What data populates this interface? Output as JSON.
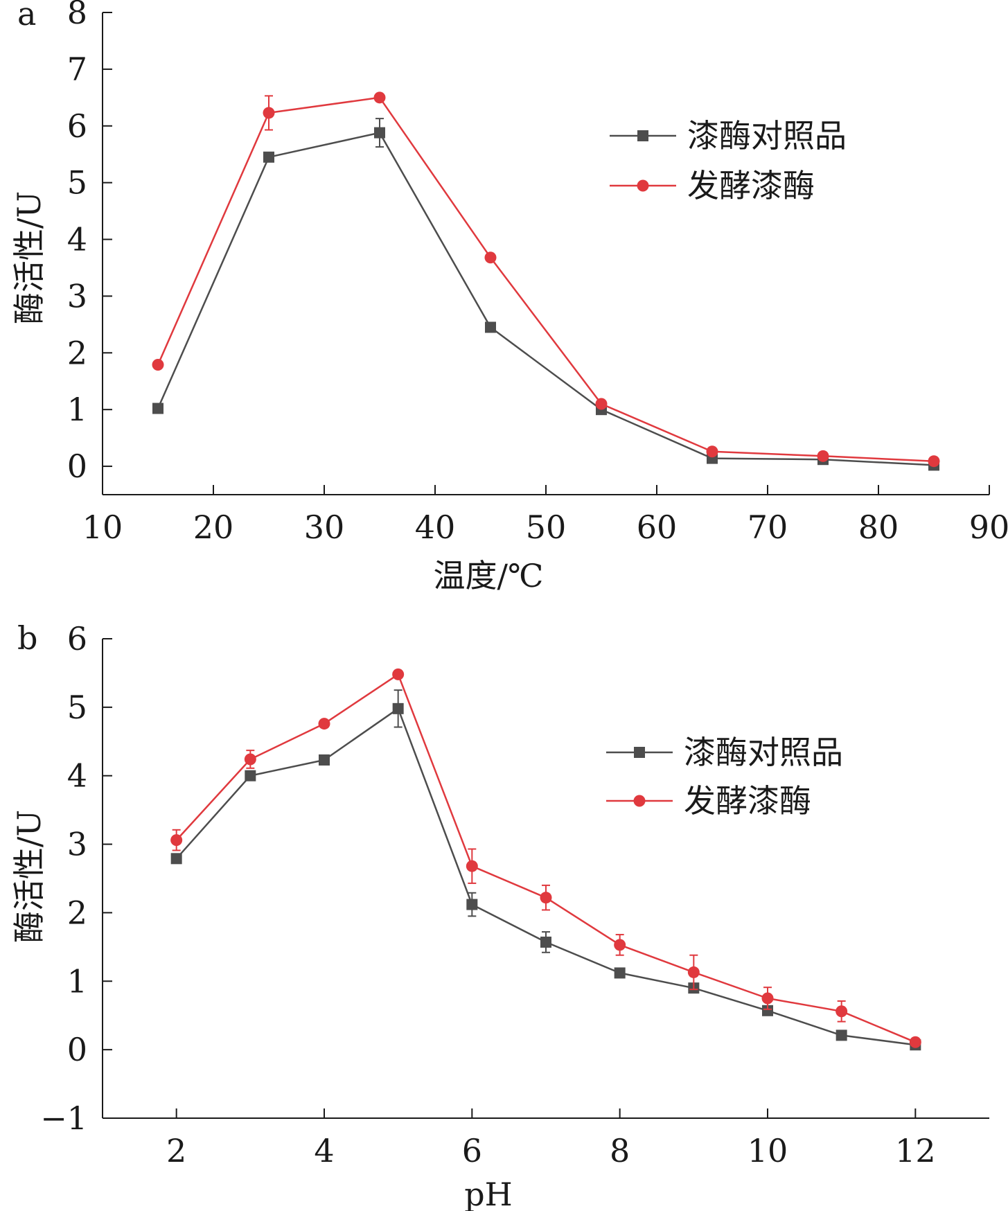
{
  "chart_data": [
    {
      "panel_label": "a",
      "type": "line",
      "xlabel": "温度/℃",
      "ylabel": "酶活性/U",
      "xlim": [
        10,
        90
      ],
      "ylim": [
        -0.5,
        8
      ],
      "xticks": [
        10,
        20,
        30,
        40,
        50,
        60,
        70,
        80,
        90
      ],
      "yticks": [
        0,
        1,
        2,
        3,
        4,
        5,
        6,
        7,
        8
      ],
      "grid": false,
      "legend_position": "top-right",
      "x": [
        15,
        25,
        35,
        45,
        55,
        65,
        75,
        85
      ],
      "series": [
        {
          "name": "漆酶对照品",
          "color": "#4d4d4d",
          "marker": "square",
          "values": [
            1.02,
            5.45,
            5.88,
            2.45,
            1.0,
            0.14,
            0.12,
            0.02
          ],
          "errors": [
            0.03,
            0.08,
            0.25,
            0.05,
            0.04,
            0.03,
            0.03,
            0.02
          ]
        },
        {
          "name": "发酵漆酶",
          "color": "#e0393e",
          "marker": "circle",
          "values": [
            1.79,
            6.23,
            6.5,
            3.68,
            1.1,
            0.26,
            0.18,
            0.09
          ],
          "errors": [
            0.03,
            0.3,
            0.05,
            0.05,
            0.04,
            0.03,
            0.03,
            0.02
          ]
        }
      ]
    },
    {
      "panel_label": "b",
      "type": "line",
      "xlabel": "pH",
      "ylabel": "酶活性/U",
      "xlim": [
        1,
        13
      ],
      "ylim": [
        -1,
        6
      ],
      "xticks": [
        2,
        4,
        6,
        8,
        10,
        12
      ],
      "yticks": [
        -1,
        0,
        1,
        2,
        3,
        4,
        5,
        6
      ],
      "grid": false,
      "legend_position": "top-right",
      "x": [
        2,
        3,
        4,
        5,
        6,
        7,
        8,
        9,
        10,
        11,
        12
      ],
      "series": [
        {
          "name": "漆酶对照品",
          "color": "#4d4d4d",
          "marker": "square",
          "values": [
            2.79,
            4.0,
            4.23,
            4.98,
            2.12,
            1.57,
            1.12,
            0.9,
            0.57,
            0.21,
            0.07
          ],
          "errors": [
            0.05,
            0.05,
            0.04,
            0.27,
            0.17,
            0.15,
            0.05,
            0.05,
            0.05,
            0.05,
            0.04
          ]
        },
        {
          "name": "发酵漆酶",
          "color": "#e0393e",
          "marker": "circle",
          "values": [
            3.06,
            4.24,
            4.76,
            5.48,
            2.68,
            2.22,
            1.53,
            1.13,
            0.75,
            0.56,
            0.11
          ],
          "errors": [
            0.15,
            0.13,
            0.04,
            0.05,
            0.25,
            0.18,
            0.15,
            0.25,
            0.16,
            0.15,
            0.04
          ]
        }
      ]
    }
  ]
}
